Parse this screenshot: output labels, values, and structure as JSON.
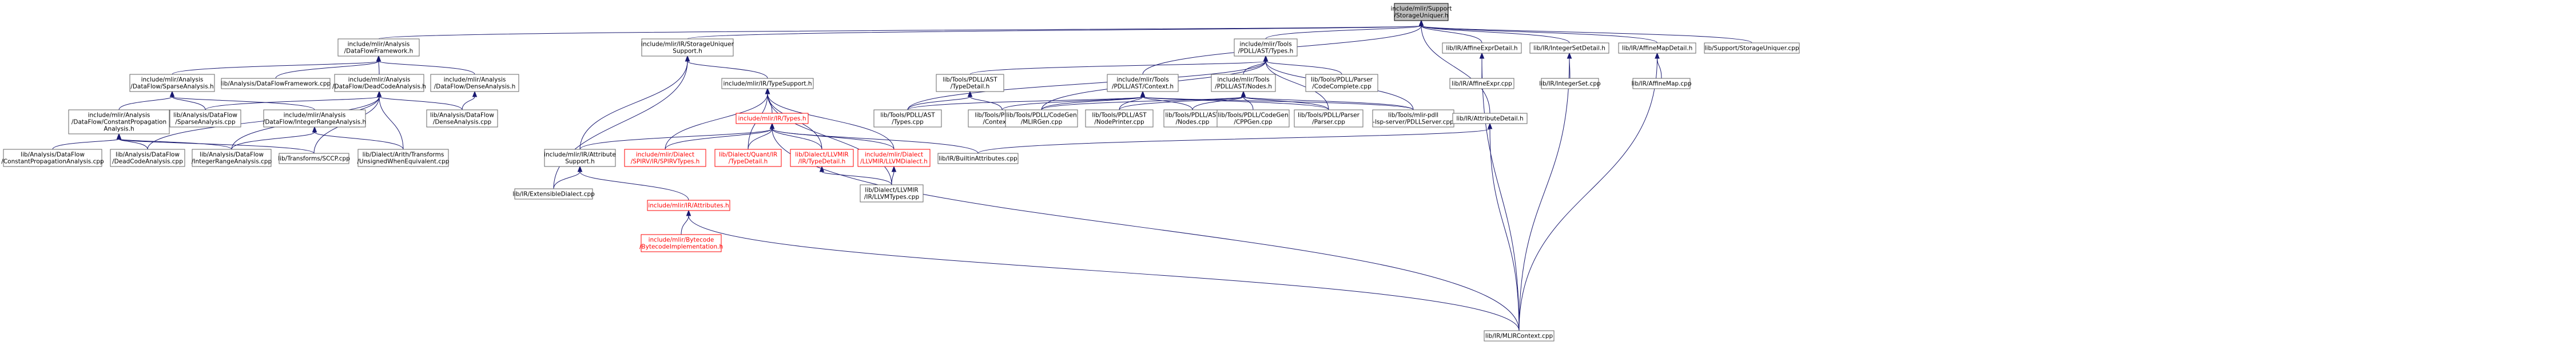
{
  "graph": {
    "nodes": [
      {
        "id": "storage_uniquer",
        "lines": [
          "include/mlir/Support",
          "/StorageUniquer.h"
        ],
        "style": "root"
      },
      {
        "id": "dataflow_framework",
        "lines": [
          "include/mlir/Analysis",
          "/DataFlowFramework.h"
        ],
        "style": "normal"
      },
      {
        "id": "storage_uniquer_support",
        "lines": [
          "include/mlir/IR/StorageUniquer",
          "Support.h"
        ],
        "style": "normal"
      },
      {
        "id": "pdll_types",
        "lines": [
          "include/mlir/Tools",
          "/PDLL/AST/Types.h"
        ],
        "style": "normal"
      },
      {
        "id": "affine_expr_detail",
        "lines": [
          "lib/IR/AffineExprDetail.h"
        ],
        "style": "normal"
      },
      {
        "id": "integer_set_detail",
        "lines": [
          "lib/IR/IntegerSetDetail.h"
        ],
        "style": "normal"
      },
      {
        "id": "affine_map_detail",
        "lines": [
          "lib/IR/AffineMapDetail.h"
        ],
        "style": "normal"
      },
      {
        "id": "storage_uniquer_cpp",
        "lines": [
          "lib/Support/StorageUniquer.cpp"
        ],
        "style": "normal"
      },
      {
        "id": "sparse_analysis_h",
        "lines": [
          "include/mlir/Analysis",
          "/DataFlow/SparseAnalysis.h"
        ],
        "style": "normal"
      },
      {
        "id": "dataflow_framework_cpp",
        "lines": [
          "lib/Analysis/DataFlowFramework.cpp"
        ],
        "style": "normal"
      },
      {
        "id": "dead_code_analysis_h",
        "lines": [
          "include/mlir/Analysis",
          "/DataFlow/DeadCodeAnalysis.h"
        ],
        "style": "normal"
      },
      {
        "id": "dense_analysis_h",
        "lines": [
          "include/mlir/Analysis",
          "/DataFlow/DenseAnalysis.h"
        ],
        "style": "normal"
      },
      {
        "id": "type_support",
        "lines": [
          "include/mlir/IR/TypeSupport.h"
        ],
        "style": "normal"
      },
      {
        "id": "pdll_type_detail",
        "lines": [
          "lib/Tools/PDLL/AST",
          "/TypeDetail.h"
        ],
        "style": "normal"
      },
      {
        "id": "pdll_context",
        "lines": [
          "include/mlir/Tools",
          "/PDLL/AST/Context.h"
        ],
        "style": "normal"
      },
      {
        "id": "pdll_nodes",
        "lines": [
          "include/mlir/Tools",
          "/PDLL/AST/Nodes.h"
        ],
        "style": "normal"
      },
      {
        "id": "pdll_code_complete",
        "lines": [
          "lib/Tools/PDLL/Parser",
          "/CodeComplete.cpp"
        ],
        "style": "normal"
      },
      {
        "id": "affine_expr_cpp",
        "lines": [
          "lib/IR/AffineExpr.cpp"
        ],
        "style": "normal"
      },
      {
        "id": "integer_set_cpp",
        "lines": [
          "lib/IR/IntegerSet.cpp"
        ],
        "style": "normal"
      },
      {
        "id": "affine_map_cpp",
        "lines": [
          "lib/IR/AffineMap.cpp"
        ],
        "style": "normal"
      },
      {
        "id": "constant_propagation_h",
        "lines": [
          "include/mlir/Analysis",
          "/DataFlow/ConstantPropagation",
          "Analysis.h"
        ],
        "style": "normal"
      },
      {
        "id": "sparse_analysis_cpp",
        "lines": [
          "lib/Analysis/DataFlow",
          "/SparseAnalysis.cpp"
        ],
        "style": "normal"
      },
      {
        "id": "integer_range_analysis_h",
        "lines": [
          "include/mlir/Analysis",
          "/DataFlow/IntegerRangeAnalysis.h"
        ],
        "style": "normal"
      },
      {
        "id": "dense_analysis_cpp",
        "lines": [
          "lib/Analysis/DataFlow",
          "/DenseAnalysis.cpp"
        ],
        "style": "normal"
      },
      {
        "id": "ir_types_h",
        "lines": [
          "include/mlir/IR/Types.h"
        ],
        "style": "red"
      },
      {
        "id": "pdll_types_cpp",
        "lines": [
          "lib/Tools/PDLL/AST",
          "/Types.cpp"
        ],
        "style": "normal"
      },
      {
        "id": "pdll_context_cpp",
        "lines": [
          "lib/Tools/PDLL/AST",
          "/Context.cpp"
        ],
        "style": "normal"
      },
      {
        "id": "mlir_gen_cpp",
        "lines": [
          "lib/Tools/PDLL/CodeGen",
          "/MLIRGen.cpp"
        ],
        "style": "normal"
      },
      {
        "id": "node_printer_cpp",
        "lines": [
          "lib/Tools/PDLL/AST",
          "/NodePrinter.cpp"
        ],
        "style": "normal"
      },
      {
        "id": "nodes_cpp",
        "lines": [
          "lib/Tools/PDLL/AST",
          "/Nodes.cpp"
        ],
        "style": "normal"
      },
      {
        "id": "cpp_gen_cpp",
        "lines": [
          "lib/Tools/PDLL/CodeGen",
          "/CPPGen.cpp"
        ],
        "style": "normal"
      },
      {
        "id": "parser_cpp",
        "lines": [
          "lib/Tools/PDLL/Parser",
          "/Parser.cpp"
        ],
        "style": "normal"
      },
      {
        "id": "pdll_lsp_server_cpp",
        "lines": [
          "lib/Tools/mlir-pdll",
          "-lsp-server/PDLLServer.cpp"
        ],
        "style": "normal"
      },
      {
        "id": "attribute_detail_h",
        "lines": [
          "lib/IR/AttributeDetail.h"
        ],
        "style": "normal"
      },
      {
        "id": "constant_propagation_cpp",
        "lines": [
          "lib/Analysis/DataFlow",
          "/ConstantPropagationAnalysis.cpp"
        ],
        "style": "normal"
      },
      {
        "id": "dead_code_analysis_cpp",
        "lines": [
          "lib/Analysis/DataFlow",
          "/DeadCodeAnalysis.cpp"
        ],
        "style": "normal"
      },
      {
        "id": "integer_range_analysis_cpp",
        "lines": [
          "lib/Analysis/DataFlow",
          "/IntegerRangeAnalysis.cpp"
        ],
        "style": "normal"
      },
      {
        "id": "sccp_cpp",
        "lines": [
          "lib/Transforms/SCCP.cpp"
        ],
        "style": "normal"
      },
      {
        "id": "unsigned_when_equivalent_cpp",
        "lines": [
          "lib/Dialect/Arith/Transforms",
          "/UnsignedWhenEquivalent.cpp"
        ],
        "style": "normal"
      },
      {
        "id": "attribute_support_h",
        "lines": [
          "include/mlir/IR/Attribute",
          "Support.h"
        ],
        "style": "normal"
      },
      {
        "id": "spirv_types_h",
        "lines": [
          "include/mlir/Dialect",
          "/SPIRV/IR/SPIRVTypes.h"
        ],
        "style": "red"
      },
      {
        "id": "quant_type_detail_h",
        "lines": [
          "lib/Dialect/Quant/IR",
          "/TypeDetail.h"
        ],
        "style": "red"
      },
      {
        "id": "llvm_type_detail_h",
        "lines": [
          "lib/Dialect/LLVMIR",
          "/IR/TypeDetail.h"
        ],
        "style": "red"
      },
      {
        "id": "llvm_dialect_h",
        "lines": [
          "include/mlir/Dialect",
          "/LLVMIR/LLVMDialect.h"
        ],
        "style": "red"
      },
      {
        "id": "builtin_attributes_cpp",
        "lines": [
          "lib/IR/BuiltinAttributes.cpp"
        ],
        "style": "normal"
      },
      {
        "id": "extensible_dialect_cpp",
        "lines": [
          "lib/IR/ExtensibleDialect.cpp"
        ],
        "style": "normal"
      },
      {
        "id": "llvm_types_cpp",
        "lines": [
          "lib/Dialect/LLVMIR",
          "/IR/LLVMTypes.cpp"
        ],
        "style": "normal"
      },
      {
        "id": "attributes_h",
        "lines": [
          "include/mlir/IR/Attributes.h"
        ],
        "style": "red"
      },
      {
        "id": "mlir_context_cpp",
        "lines": [
          "lib/IR/MLIRContext.cpp"
        ],
        "style": "normal"
      },
      {
        "id": "bytecode_implementation_h",
        "lines": [
          "include/mlir/Bytecode",
          "/BytecodeImplementation.h"
        ],
        "style": "red"
      }
    ],
    "edges": [
      [
        "storage_uniquer",
        "dataflow_framework"
      ],
      [
        "storage_uniquer",
        "storage_uniquer_support"
      ],
      [
        "storage_uniquer",
        "pdll_types"
      ],
      [
        "storage_uniquer",
        "pdll_context"
      ],
      [
        "storage_uniquer",
        "affine_expr_detail"
      ],
      [
        "storage_uniquer",
        "integer_set_detail"
      ],
      [
        "storage_uniquer",
        "affine_map_detail"
      ],
      [
        "storage_uniquer",
        "storage_uniquer_cpp"
      ],
      [
        "storage_uniquer",
        "attribute_detail_h"
      ],
      [
        "dataflow_framework",
        "sparse_analysis_h"
      ],
      [
        "dataflow_framework",
        "dataflow_framework_cpp"
      ],
      [
        "dataflow_framework",
        "dead_code_analysis_h"
      ],
      [
        "dataflow_framework",
        "dense_analysis_h"
      ],
      [
        "sparse_analysis_h",
        "constant_propagation_h"
      ],
      [
        "sparse_analysis_h",
        "sparse_analysis_cpp"
      ],
      [
        "sparse_analysis_h",
        "integer_range_analysis_h"
      ],
      [
        "dead_code_analysis_h",
        "sparse_analysis_cpp"
      ],
      [
        "dead_code_analysis_h",
        "dead_code_analysis_cpp"
      ],
      [
        "dead_code_analysis_h",
        "integer_range_analysis_cpp"
      ],
      [
        "dead_code_analysis_h",
        "sccp_cpp"
      ],
      [
        "dead_code_analysis_h",
        "unsigned_when_equivalent_cpp"
      ],
      [
        "dead_code_analysis_h",
        "dense_analysis_cpp"
      ],
      [
        "dense_analysis_h",
        "dense_analysis_cpp"
      ],
      [
        "constant_propagation_h",
        "constant_propagation_cpp"
      ],
      [
        "constant_propagation_h",
        "dead_code_analysis_cpp"
      ],
      [
        "constant_propagation_h",
        "integer_range_analysis_cpp"
      ],
      [
        "constant_propagation_h",
        "sccp_cpp"
      ],
      [
        "integer_range_analysis_h",
        "integer_range_analysis_cpp"
      ],
      [
        "integer_range_analysis_h",
        "unsigned_when_equivalent_cpp"
      ],
      [
        "storage_uniquer_support",
        "type_support"
      ],
      [
        "storage_uniquer_support",
        "attribute_support_h"
      ],
      [
        "storage_uniquer_support",
        "extensible_dialect_cpp"
      ],
      [
        "type_support",
        "ir_types_h"
      ],
      [
        "type_support",
        "spirv_types_h"
      ],
      [
        "type_support",
        "quant_type_detail_h"
      ],
      [
        "type_support",
        "llvm_type_detail_h"
      ],
      [
        "type_support",
        "llvm_dialect_h"
      ],
      [
        "type_support",
        "llvm_types_cpp"
      ],
      [
        "ir_types_h",
        "attribute_support_h"
      ],
      [
        "ir_types_h",
        "spirv_types_h"
      ],
      [
        "ir_types_h",
        "quant_type_detail_h"
      ],
      [
        "ir_types_h",
        "llvm_type_detail_h"
      ],
      [
        "ir_types_h",
        "llvm_dialect_h"
      ],
      [
        "ir_types_h",
        "builtin_attributes_cpp"
      ],
      [
        "ir_types_h",
        "mlir_context_cpp"
      ],
      [
        "attribute_support_h",
        "extensible_dialect_cpp"
      ],
      [
        "attribute_support_h",
        "attributes_h"
      ],
      [
        "attributes_h",
        "bytecode_implementation_h"
      ],
      [
        "attributes_h",
        "mlir_context_cpp"
      ],
      [
        "llvm_type_detail_h",
        "llvm_types_cpp"
      ],
      [
        "llvm_dialect_h",
        "llvm_types_cpp"
      ],
      [
        "pdll_types",
        "pdll_type_detail"
      ],
      [
        "pdll_types",
        "pdll_nodes"
      ],
      [
        "pdll_types",
        "pdll_code_complete"
      ],
      [
        "pdll_types",
        "pdll_types_cpp"
      ],
      [
        "pdll_types",
        "mlir_gen_cpp"
      ],
      [
        "pdll_types",
        "parser_cpp"
      ],
      [
        "pdll_types",
        "pdll_lsp_server_cpp"
      ],
      [
        "pdll_type_detail",
        "pdll_types_cpp"
      ],
      [
        "pdll_type_detail",
        "pdll_context_cpp"
      ],
      [
        "pdll_context",
        "pdll_types_cpp"
      ],
      [
        "pdll_context",
        "pdll_context_cpp"
      ],
      [
        "pdll_context",
        "mlir_gen_cpp"
      ],
      [
        "pdll_context",
        "node_printer_cpp"
      ],
      [
        "pdll_context",
        "nodes_cpp"
      ],
      [
        "pdll_context",
        "parser_cpp"
      ],
      [
        "pdll_context",
        "pdll_lsp_server_cpp"
      ],
      [
        "pdll_nodes",
        "mlir_gen_cpp"
      ],
      [
        "pdll_nodes",
        "node_printer_cpp"
      ],
      [
        "pdll_nodes",
        "nodes_cpp"
      ],
      [
        "pdll_nodes",
        "cpp_gen_cpp"
      ],
      [
        "pdll_nodes",
        "parser_cpp"
      ],
      [
        "pdll_nodes",
        "pdll_lsp_server_cpp"
      ],
      [
        "affine_expr_detail",
        "affine_expr_cpp"
      ],
      [
        "affine_expr_detail",
        "mlir_context_cpp"
      ],
      [
        "integer_set_detail",
        "integer_set_cpp"
      ],
      [
        "integer_set_detail",
        "mlir_context_cpp"
      ],
      [
        "affine_map_detail",
        "affine_map_cpp"
      ],
      [
        "affine_map_detail",
        "mlir_context_cpp"
      ],
      [
        "attribute_detail_h",
        "builtin_attributes_cpp"
      ],
      [
        "attribute_detail_h",
        "mlir_context_cpp"
      ]
    ]
  }
}
